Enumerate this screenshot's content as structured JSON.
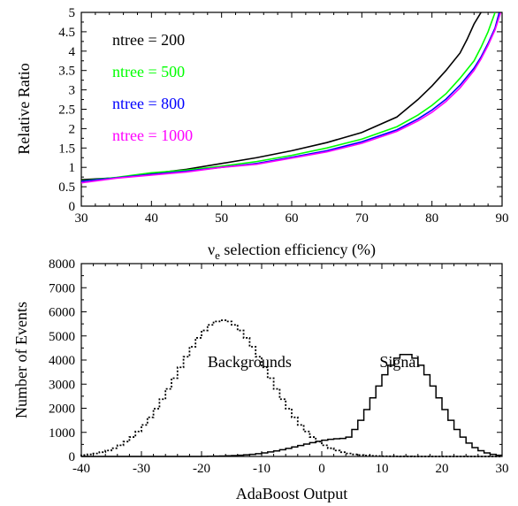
{
  "chart_data": [
    {
      "type": "line",
      "xlabel": "ν",
      "xlabel_sub": "e",
      "xlabel_rest": " selection efficiency (%)",
      "ylabel": "Relative Ratio",
      "xlim": [
        30,
        90
      ],
      "ylim": [
        0,
        5
      ],
      "xticks": [
        30,
        40,
        50,
        60,
        70,
        80,
        90
      ],
      "yticks": [
        "0",
        "0.5",
        "1",
        "1.5",
        "2",
        "2.5",
        "3",
        "3.5",
        "4",
        "4.5",
        "5"
      ],
      "legend_placement": "top-left",
      "grid": false,
      "series": [
        {
          "name": "ntree = 200",
          "color": "#000000",
          "x": [
            30,
            35,
            40,
            45,
            50,
            55,
            60,
            65,
            70,
            75,
            78,
            80,
            82,
            84,
            85,
            86,
            87
          ],
          "y": [
            0.68,
            0.73,
            0.84,
            0.95,
            1.1,
            1.25,
            1.43,
            1.64,
            1.9,
            2.3,
            2.75,
            3.1,
            3.5,
            3.95,
            4.3,
            4.7,
            5.0
          ]
        },
        {
          "name": "ntree = 500",
          "color": "#00ff00",
          "x": [
            30,
            35,
            40,
            45,
            50,
            55,
            60,
            65,
            70,
            75,
            78,
            80,
            82,
            84,
            86,
            87,
            88,
            89
          ],
          "y": [
            0.65,
            0.74,
            0.86,
            0.93,
            1.03,
            1.15,
            1.31,
            1.5,
            1.73,
            2.05,
            2.35,
            2.6,
            2.9,
            3.3,
            3.75,
            4.1,
            4.5,
            5.0
          ]
        },
        {
          "name": "ntree = 800",
          "color": "#0000ff",
          "x": [
            30,
            35,
            40,
            45,
            50,
            55,
            60,
            65,
            70,
            75,
            78,
            80,
            82,
            84,
            86,
            87,
            88,
            89,
            89.6
          ],
          "y": [
            0.64,
            0.73,
            0.82,
            0.9,
            1.0,
            1.1,
            1.26,
            1.43,
            1.66,
            1.97,
            2.25,
            2.48,
            2.76,
            3.12,
            3.56,
            3.85,
            4.2,
            4.6,
            5.0
          ]
        },
        {
          "name": "ntree = 1000",
          "color": "#ff00ff",
          "x": [
            30,
            35,
            40,
            45,
            50,
            55,
            60,
            65,
            70,
            75,
            78,
            80,
            82,
            84,
            86,
            87,
            88,
            89,
            89.8
          ],
          "y": [
            0.6,
            0.72,
            0.8,
            0.88,
            1.0,
            1.08,
            1.24,
            1.4,
            1.62,
            1.93,
            2.2,
            2.42,
            2.7,
            3.05,
            3.5,
            3.8,
            4.15,
            4.55,
            5.0
          ]
        }
      ]
    },
    {
      "type": "area",
      "xlabel": "AdaBoost Output",
      "ylabel": "Number of Events",
      "xlim": [
        -40,
        30
      ],
      "ylim": [
        0,
        8000
      ],
      "xticks": [
        "-40",
        "-30",
        "-20",
        "-10",
        "0",
        "10",
        "20",
        "30"
      ],
      "yticks": [
        "0",
        "1000",
        "2000",
        "3000",
        "4000",
        "5000",
        "6000",
        "7000",
        "8000"
      ],
      "grid": false,
      "bin_width": 1,
      "annotations": [
        {
          "text": "Backgrounds",
          "at": [
            -12,
            3700
          ]
        },
        {
          "text": "Signal",
          "at": [
            13,
            3700
          ]
        }
      ],
      "series": [
        {
          "name": "Backgrounds",
          "style": "dotted",
          "mean": -16.5,
          "sigma": 7.6,
          "peak": 5650
        },
        {
          "name": "Signal",
          "style": "solid",
          "mean": 14.0,
          "sigma": 5.2,
          "peak": 4250,
          "left_tail": {
            "start": -20,
            "end": 5,
            "mean": 4.0,
            "sigma": 7.5,
            "peak": 750
          }
        }
      ]
    }
  ]
}
